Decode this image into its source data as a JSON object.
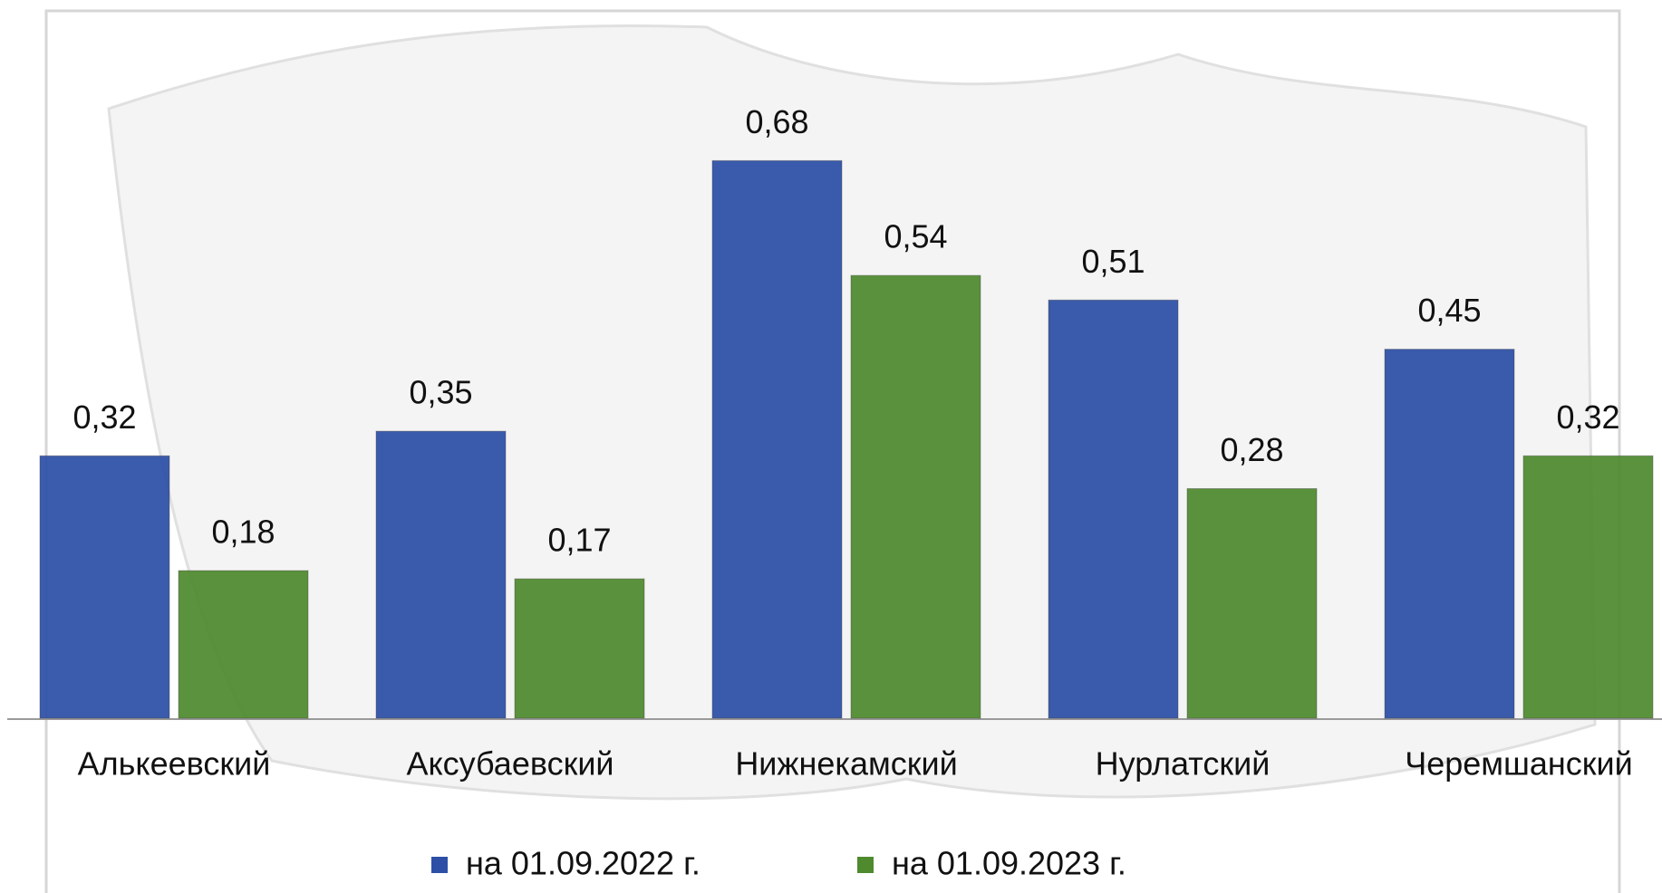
{
  "chart_data": {
    "type": "bar",
    "categories": [
      "Алькеевский",
      "Аксубаевский",
      "Нижнекамский",
      "Нурлатский",
      "Черемшанский"
    ],
    "series": [
      {
        "name": "на 01.09.2022 г.",
        "color": "#2d4fa6",
        "values": [
          0.32,
          0.35,
          0.68,
          0.51,
          0.45
        ],
        "value_labels": [
          "0,32",
          "0,35",
          "0,68",
          "0,51",
          "0,45"
        ]
      },
      {
        "name": "на 01.09.2023 г.",
        "color": "#4f8a2f",
        "values": [
          0.18,
          0.17,
          0.54,
          0.28,
          0.32
        ],
        "value_labels": [
          "0,18",
          "0,17",
          "0,54",
          "0,28",
          "0,32"
        ]
      }
    ],
    "ylim": [
      0,
      0.75
    ],
    "legend": "bottom"
  }
}
